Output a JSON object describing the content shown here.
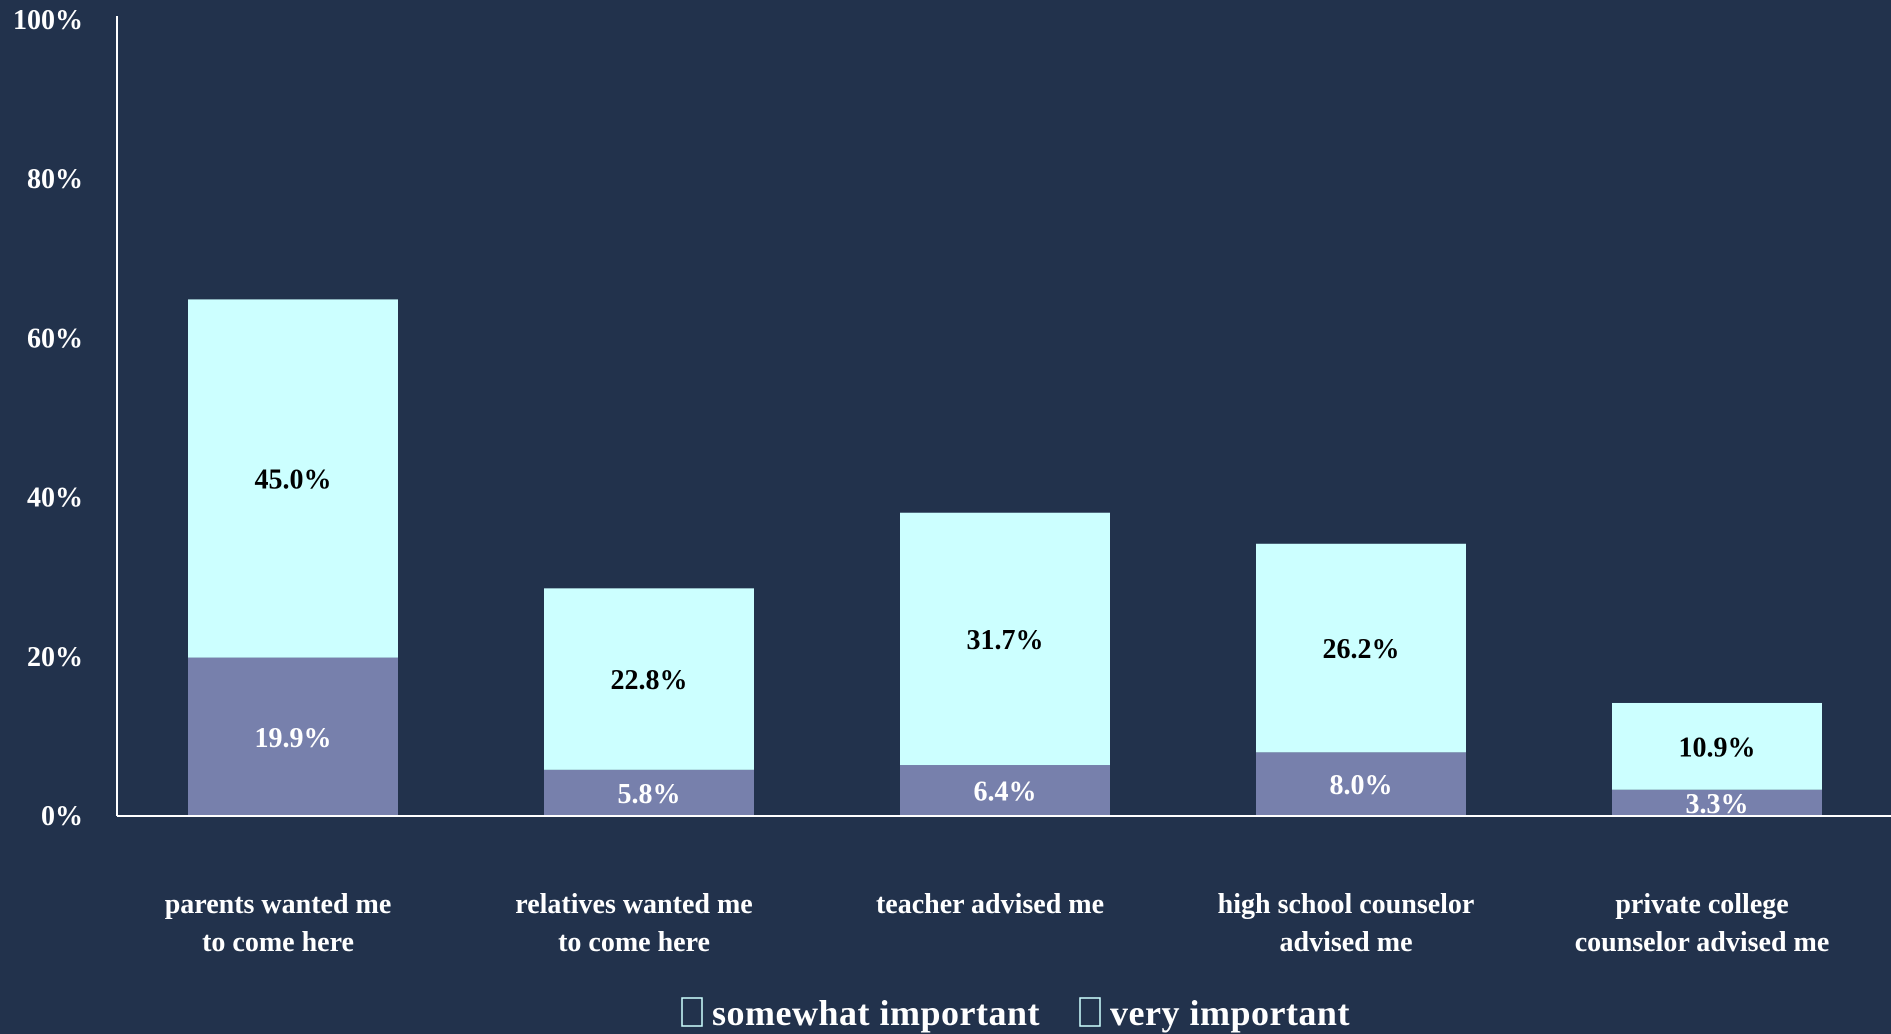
{
  "chart_data": {
    "type": "bar",
    "stacked": true,
    "categories": [
      [
        "parents wanted me",
        "to come here"
      ],
      [
        "relatives wanted me",
        "to come here"
      ],
      [
        "teacher advised me"
      ],
      [
        "high school counselor",
        "advised me"
      ],
      [
        "private college",
        "counselor advised me"
      ]
    ],
    "series": [
      {
        "name": "very important",
        "values": [
          19.9,
          5.8,
          6.4,
          8.0,
          3.3
        ],
        "labels": [
          "19.9%",
          "5.8%",
          "6.4%",
          "8.0%",
          "3.3%"
        ],
        "color": "#7780ac",
        "label_color": "#ffffff"
      },
      {
        "name": "somewhat important",
        "values": [
          45.0,
          22.8,
          31.7,
          26.2,
          10.9
        ],
        "labels": [
          "45.0%",
          "22.8%",
          "31.7%",
          "26.2%",
          "10.9%"
        ],
        "color": "#ccffff",
        "label_color": "#000000"
      }
    ],
    "legend_order": [
      "somewhat important",
      "very important"
    ],
    "yticks": [
      "0%",
      "20%",
      "40%",
      "60%",
      "80%",
      "100%"
    ],
    "ylim": [
      0,
      100
    ],
    "grid": false,
    "legend_position": "bottom",
    "colors": {
      "background": "#22324c",
      "axis": "#ffffff",
      "text": "#ffffff"
    }
  }
}
